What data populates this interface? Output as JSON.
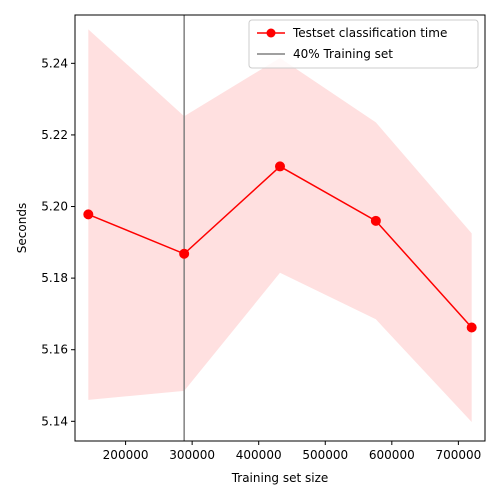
{
  "chart_data": {
    "type": "line",
    "xlabel": "Training set size",
    "ylabel": "Seconds",
    "xlim": [
      124000,
      740000
    ],
    "ylim": [
      5.1345,
      5.2535
    ],
    "xticks": [
      200000,
      300000,
      400000,
      500000,
      600000,
      700000
    ],
    "xtick_labels": [
      "200000",
      "300000",
      "400000",
      "500000",
      "600000",
      "700000"
    ],
    "yticks": [
      5.14,
      5.16,
      5.18,
      5.2,
      5.22,
      5.24
    ],
    "ytick_labels": [
      "5.14",
      "5.16",
      "5.18",
      "5.20",
      "5.22",
      "5.24"
    ],
    "grid": false,
    "legend_position": "top-right",
    "series": [
      {
        "name": "Testset classification time",
        "color": "#ff0000",
        "marker": "circle",
        "x": [
          144000,
          288000,
          432000,
          576000,
          720000
        ],
        "y": [
          5.1978,
          5.1868,
          5.2112,
          5.196,
          5.1662
        ],
        "band_upper": [
          5.2495,
          5.2252,
          5.2415,
          5.2235,
          5.1925
        ],
        "band_lower": [
          5.146,
          5.1485,
          5.1815,
          5.1685,
          5.1398
        ],
        "band_color": "#ffe0e0"
      }
    ],
    "annotations": [
      {
        "type": "vline",
        "x": 288000,
        "name": "40% Training set",
        "color": "#808080"
      }
    ]
  }
}
